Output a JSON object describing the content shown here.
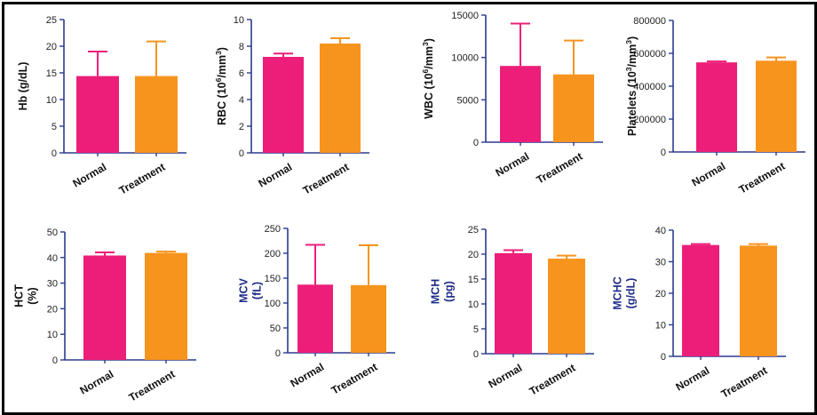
{
  "colors": {
    "normal": "#ED1E79",
    "treatment": "#F7941D",
    "axis": "#2B3A8F",
    "label_black": "#111111",
    "label_blue": "#1F2C88"
  },
  "chart_data": [
    {
      "type": "bar",
      "id": "hb",
      "ylabel": [
        "Hb (g/dL)"
      ],
      "ylabel_color": "black",
      "categories": [
        "Normal",
        "Treatment"
      ],
      "values": [
        14.4,
        14.4
      ],
      "errors": [
        4.6,
        6.5
      ],
      "ylim": [
        0,
        25
      ],
      "yticks": [
        0,
        5,
        10,
        15,
        20,
        25
      ],
      "ytick_labels": [
        "0",
        "5",
        "10",
        "15",
        "20",
        "25"
      ]
    },
    {
      "type": "bar",
      "id": "rbc",
      "ylabel": [
        "RBC (10^6/mm^3)"
      ],
      "ylabel_color": "black",
      "categories": [
        "Normal",
        "Treatment"
      ],
      "values": [
        7.2,
        8.2
      ],
      "errors": [
        0.25,
        0.4
      ],
      "ylim": [
        0,
        10
      ],
      "yticks": [
        0,
        2,
        4,
        6,
        8,
        10
      ],
      "ytick_labels": [
        "0",
        "2",
        "4",
        "6",
        "8",
        "10"
      ]
    },
    {
      "type": "bar",
      "id": "wbc",
      "ylabel": [
        "WBC (10^6/mm^3)"
      ],
      "ylabel_color": "black",
      "categories": [
        "Normal",
        "Treatment"
      ],
      "values": [
        9000,
        8000
      ],
      "errors": [
        5000,
        4000
      ],
      "ylim": [
        0,
        15000
      ],
      "yticks": [
        0,
        5000,
        10000,
        15000
      ],
      "ytick_labels": [
        "0",
        "5000",
        "10000",
        "15000"
      ]
    },
    {
      "type": "bar",
      "id": "platelets",
      "ylabel": [
        "Platelets (10^3/mm^3)"
      ],
      "ylabel_color": "black",
      "categories": [
        "Normal",
        "Treatment"
      ],
      "values": [
        545000,
        555000
      ],
      "errors": [
        6000,
        20000
      ],
      "ylim": [
        0,
        800000
      ],
      "yticks": [
        0,
        200000,
        400000,
        600000,
        800000
      ],
      "ytick_labels": [
        "0",
        "200000",
        "400000",
        "600000",
        "800000"
      ]
    },
    {
      "type": "bar",
      "id": "hct",
      "ylabel": [
        "HCT",
        "(%)"
      ],
      "ylabel_color": "black",
      "categories": [
        "Normal",
        "Treatment"
      ],
      "values": [
        40.8,
        41.8
      ],
      "errors": [
        1.2,
        0.5
      ],
      "ylim": [
        0,
        50
      ],
      "yticks": [
        0,
        10,
        20,
        30,
        40,
        50
      ],
      "ytick_labels": [
        "0",
        "10",
        "20",
        "30",
        "40",
        "50"
      ]
    },
    {
      "type": "bar",
      "id": "mcv",
      "ylabel": [
        "MCV",
        "(fL)"
      ],
      "ylabel_color": "blue",
      "categories": [
        "Normal",
        "Treatment"
      ],
      "values": [
        137,
        136
      ],
      "errors": [
        80,
        80
      ],
      "ylim": [
        0,
        250
      ],
      "yticks": [
        0,
        50,
        100,
        150,
        200,
        250
      ],
      "ytick_labels": [
        "0",
        "50",
        "100",
        "150",
        "200",
        "250"
      ]
    },
    {
      "type": "bar",
      "id": "mch",
      "ylabel": [
        "MCH",
        "(pg)"
      ],
      "ylabel_color": "blue",
      "categories": [
        "Normal",
        "Treatment"
      ],
      "values": [
        20.2,
        19.1
      ],
      "errors": [
        0.6,
        0.6
      ],
      "ylim": [
        0,
        25
      ],
      "yticks": [
        0,
        5,
        10,
        15,
        20,
        25
      ],
      "ytick_labels": [
        "0",
        "5",
        "10",
        "15",
        "20",
        "25"
      ]
    },
    {
      "type": "bar",
      "id": "mchc",
      "ylabel": [
        "MCHC",
        "(g/dL)"
      ],
      "ylabel_color": "blue",
      "categories": [
        "Normal",
        "Treatment"
      ],
      "values": [
        35.3,
        35.1
      ],
      "errors": [
        0.3,
        0.5
      ],
      "ylim": [
        0,
        40
      ],
      "yticks": [
        0,
        10,
        20,
        30,
        40
      ],
      "ytick_labels": [
        "0",
        "10",
        "20",
        "30",
        "40"
      ]
    }
  ]
}
